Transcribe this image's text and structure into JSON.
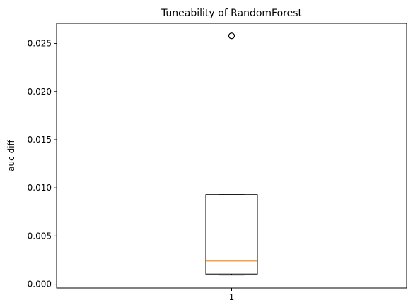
{
  "chart_data": {
    "type": "boxplot",
    "title": "Tuneability of RandomForest",
    "xlabel": "",
    "ylabel": "auc diff",
    "ylim": [
      -0.0004,
      0.0271
    ],
    "yticks": [
      0.0,
      0.005,
      0.01,
      0.015,
      0.02,
      0.025
    ],
    "ytick_labels": [
      "0.000",
      "0.005",
      "0.010",
      "0.015",
      "0.020",
      "0.025"
    ],
    "categories": [
      "1"
    ],
    "boxes": [
      {
        "category": "1",
        "whisker_low": 0.00095,
        "q1": 0.00105,
        "median": 0.0024,
        "q3": 0.0093,
        "whisker_high": 0.0093,
        "outliers": [
          0.0258
        ]
      }
    ],
    "grid": false,
    "colors": {
      "box": "#000000",
      "median": "#ff7f0e",
      "outlier": "#000000"
    }
  }
}
